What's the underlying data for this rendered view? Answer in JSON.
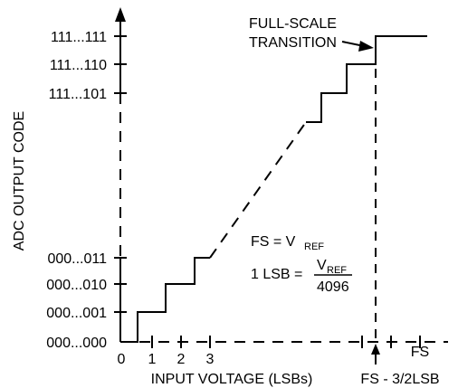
{
  "chart_data": {
    "type": "line",
    "ylabel": "ADC OUTPUT CODE",
    "xlabel": "INPUT VOLTAGE (LSBs)",
    "x_ticks": [
      "0",
      "1",
      "2",
      "3"
    ],
    "x_fs_label": "FS",
    "x_fs_minus_label": "FS - 3/2LSB",
    "y_ticks_low": [
      "000...000",
      "000...001",
      "000...010",
      "000...011"
    ],
    "y_ticks_high": [
      "111...101",
      "111...110",
      "111...111"
    ],
    "annotation_fullscale": [
      "FULL-SCALE",
      "TRANSITION"
    ],
    "equation_fs_lhs": "FS = V",
    "equation_fs_sub": "REF",
    "equation_lsb_lhs": "1 LSB =",
    "equation_lsb_num": "V",
    "equation_lsb_num_sub": "REF",
    "equation_lsb_den": "4096",
    "lower_steps": [
      {
        "x": 0.5,
        "code": 1
      },
      {
        "x": 1.5,
        "code": 2
      },
      {
        "x": 2.5,
        "code": 3
      }
    ],
    "upper_steps": [
      {
        "x": "FS - 7/2LSB",
        "code": "111...101"
      },
      {
        "x": "FS - 5/2LSB",
        "code": "111...110"
      },
      {
        "x": "FS - 3/2LSB",
        "code": "111...111"
      }
    ]
  }
}
